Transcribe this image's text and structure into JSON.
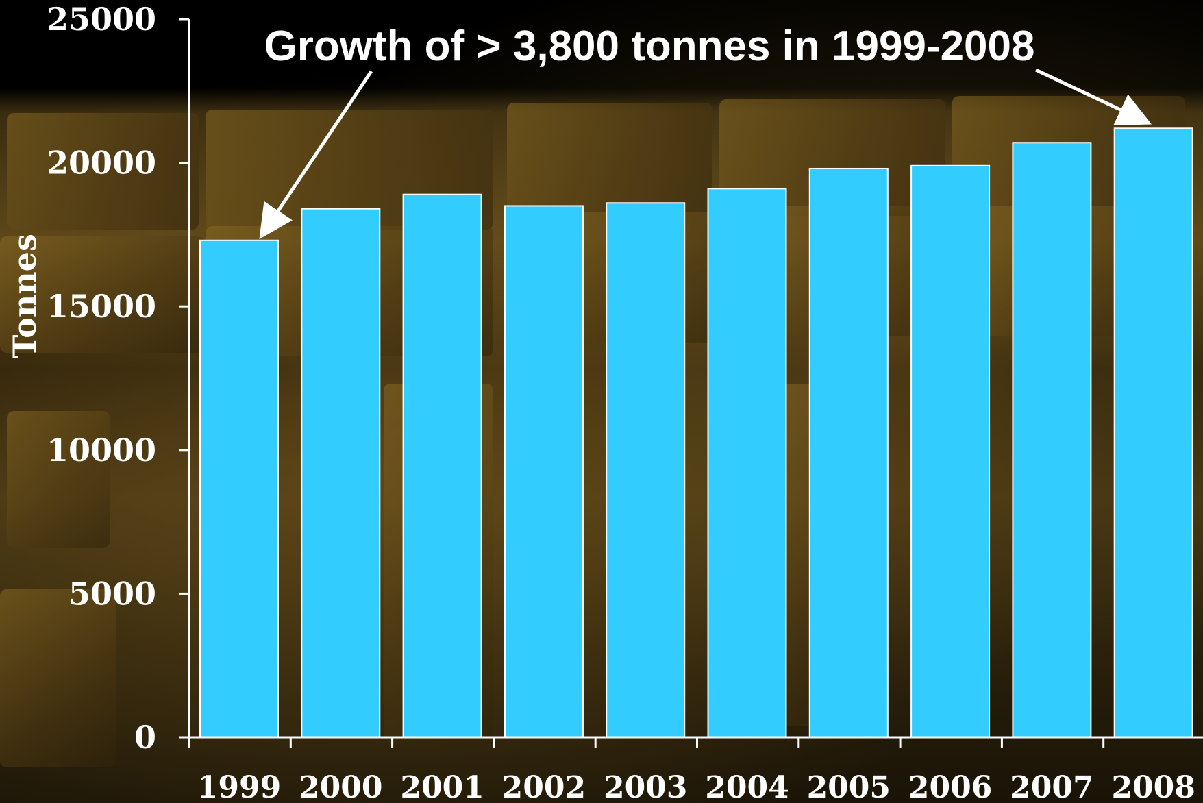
{
  "chart_data": {
    "type": "bar",
    "title": "",
    "xlabel": "",
    "ylabel": "Tonnes",
    "ylim": [
      0,
      25000
    ],
    "yticks": [
      "0",
      "5000",
      "10000",
      "15000",
      "20000",
      "25000"
    ],
    "categories": [
      "1999",
      "2000",
      "2001",
      "2002",
      "2003",
      "2004",
      "2005",
      "2006",
      "2007",
      "2008"
    ],
    "values": [
      17300,
      18400,
      18900,
      18500,
      18600,
      19100,
      19800,
      19900,
      20700,
      21200
    ],
    "annotation": "Growth of > 3,800 tonnes in 1999-2008",
    "bar_color": "#33CCFF",
    "text_color": "#FFFFFF",
    "background_color": "#000000",
    "grid": false,
    "legend": "none"
  }
}
